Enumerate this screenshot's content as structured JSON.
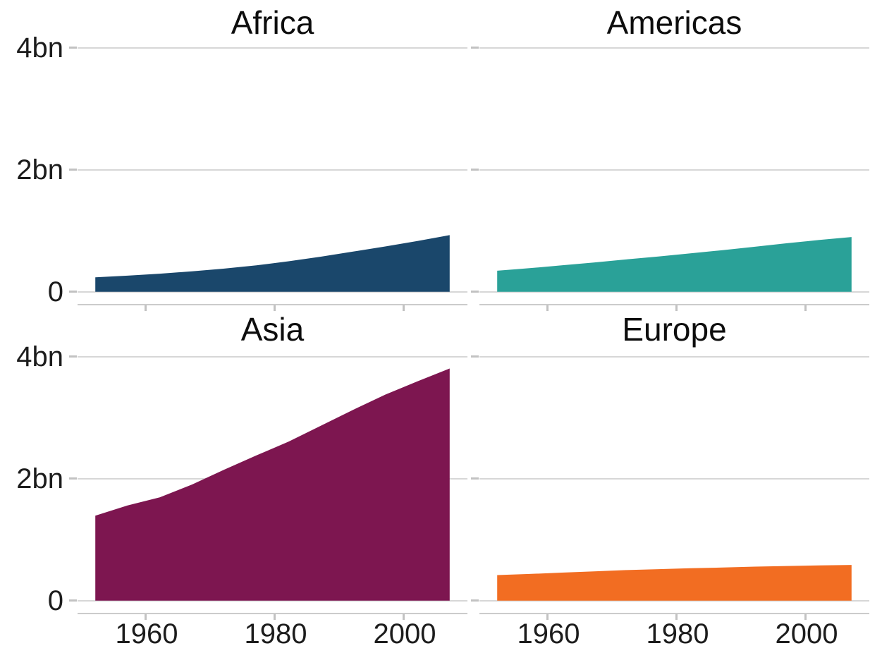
{
  "chart_data": {
    "type": "area",
    "layout": "facet-grid-2x2",
    "title": "",
    "xlabel": "",
    "ylabel": "",
    "units": "population in billions",
    "grid": "horizontal-only",
    "x": [
      1952,
      1957,
      1962,
      1967,
      1972,
      1977,
      1982,
      1987,
      1992,
      1997,
      2002,
      2007
    ],
    "x_range": [
      1952,
      2007
    ],
    "ylim": [
      0,
      4
    ],
    "facets": [
      {
        "label": "Africa",
        "color": "#1A476B",
        "values": [
          0.237,
          0.264,
          0.296,
          0.335,
          0.38,
          0.433,
          0.5,
          0.575,
          0.659,
          0.743,
          0.834,
          0.93
        ]
      },
      {
        "label": "Americas",
        "color": "#2AA198",
        "values": [
          0.345,
          0.387,
          0.433,
          0.481,
          0.53,
          0.578,
          0.63,
          0.683,
          0.739,
          0.797,
          0.85,
          0.899
        ]
      },
      {
        "label": "Asia",
        "color": "#7D1650",
        "values": [
          1.395,
          1.562,
          1.696,
          1.906,
          2.15,
          2.384,
          2.61,
          2.871,
          3.133,
          3.383,
          3.602,
          3.812
        ]
      },
      {
        "label": "Europe",
        "color": "#F26D22",
        "values": [
          0.419,
          0.438,
          0.46,
          0.481,
          0.501,
          0.517,
          0.531,
          0.543,
          0.558,
          0.569,
          0.578,
          0.586
        ]
      }
    ],
    "y_ticks": [
      {
        "value": 4,
        "label": "4bn"
      },
      {
        "value": 2,
        "label": "2bn"
      },
      {
        "value": 0,
        "label": "0"
      }
    ],
    "x_ticks": [
      {
        "value": 1960,
        "label": "1960"
      },
      {
        "value": 1980,
        "label": "1980"
      },
      {
        "value": 2000,
        "label": "2000"
      }
    ]
  },
  "colors": {
    "background": "#FFFFFF",
    "gridline": "#D7D7D7",
    "axis_line": "#CBCBCB",
    "tick": "#C2C2C2",
    "title_text": "#0D0D0D",
    "axis_text": "#1C1C1C"
  }
}
